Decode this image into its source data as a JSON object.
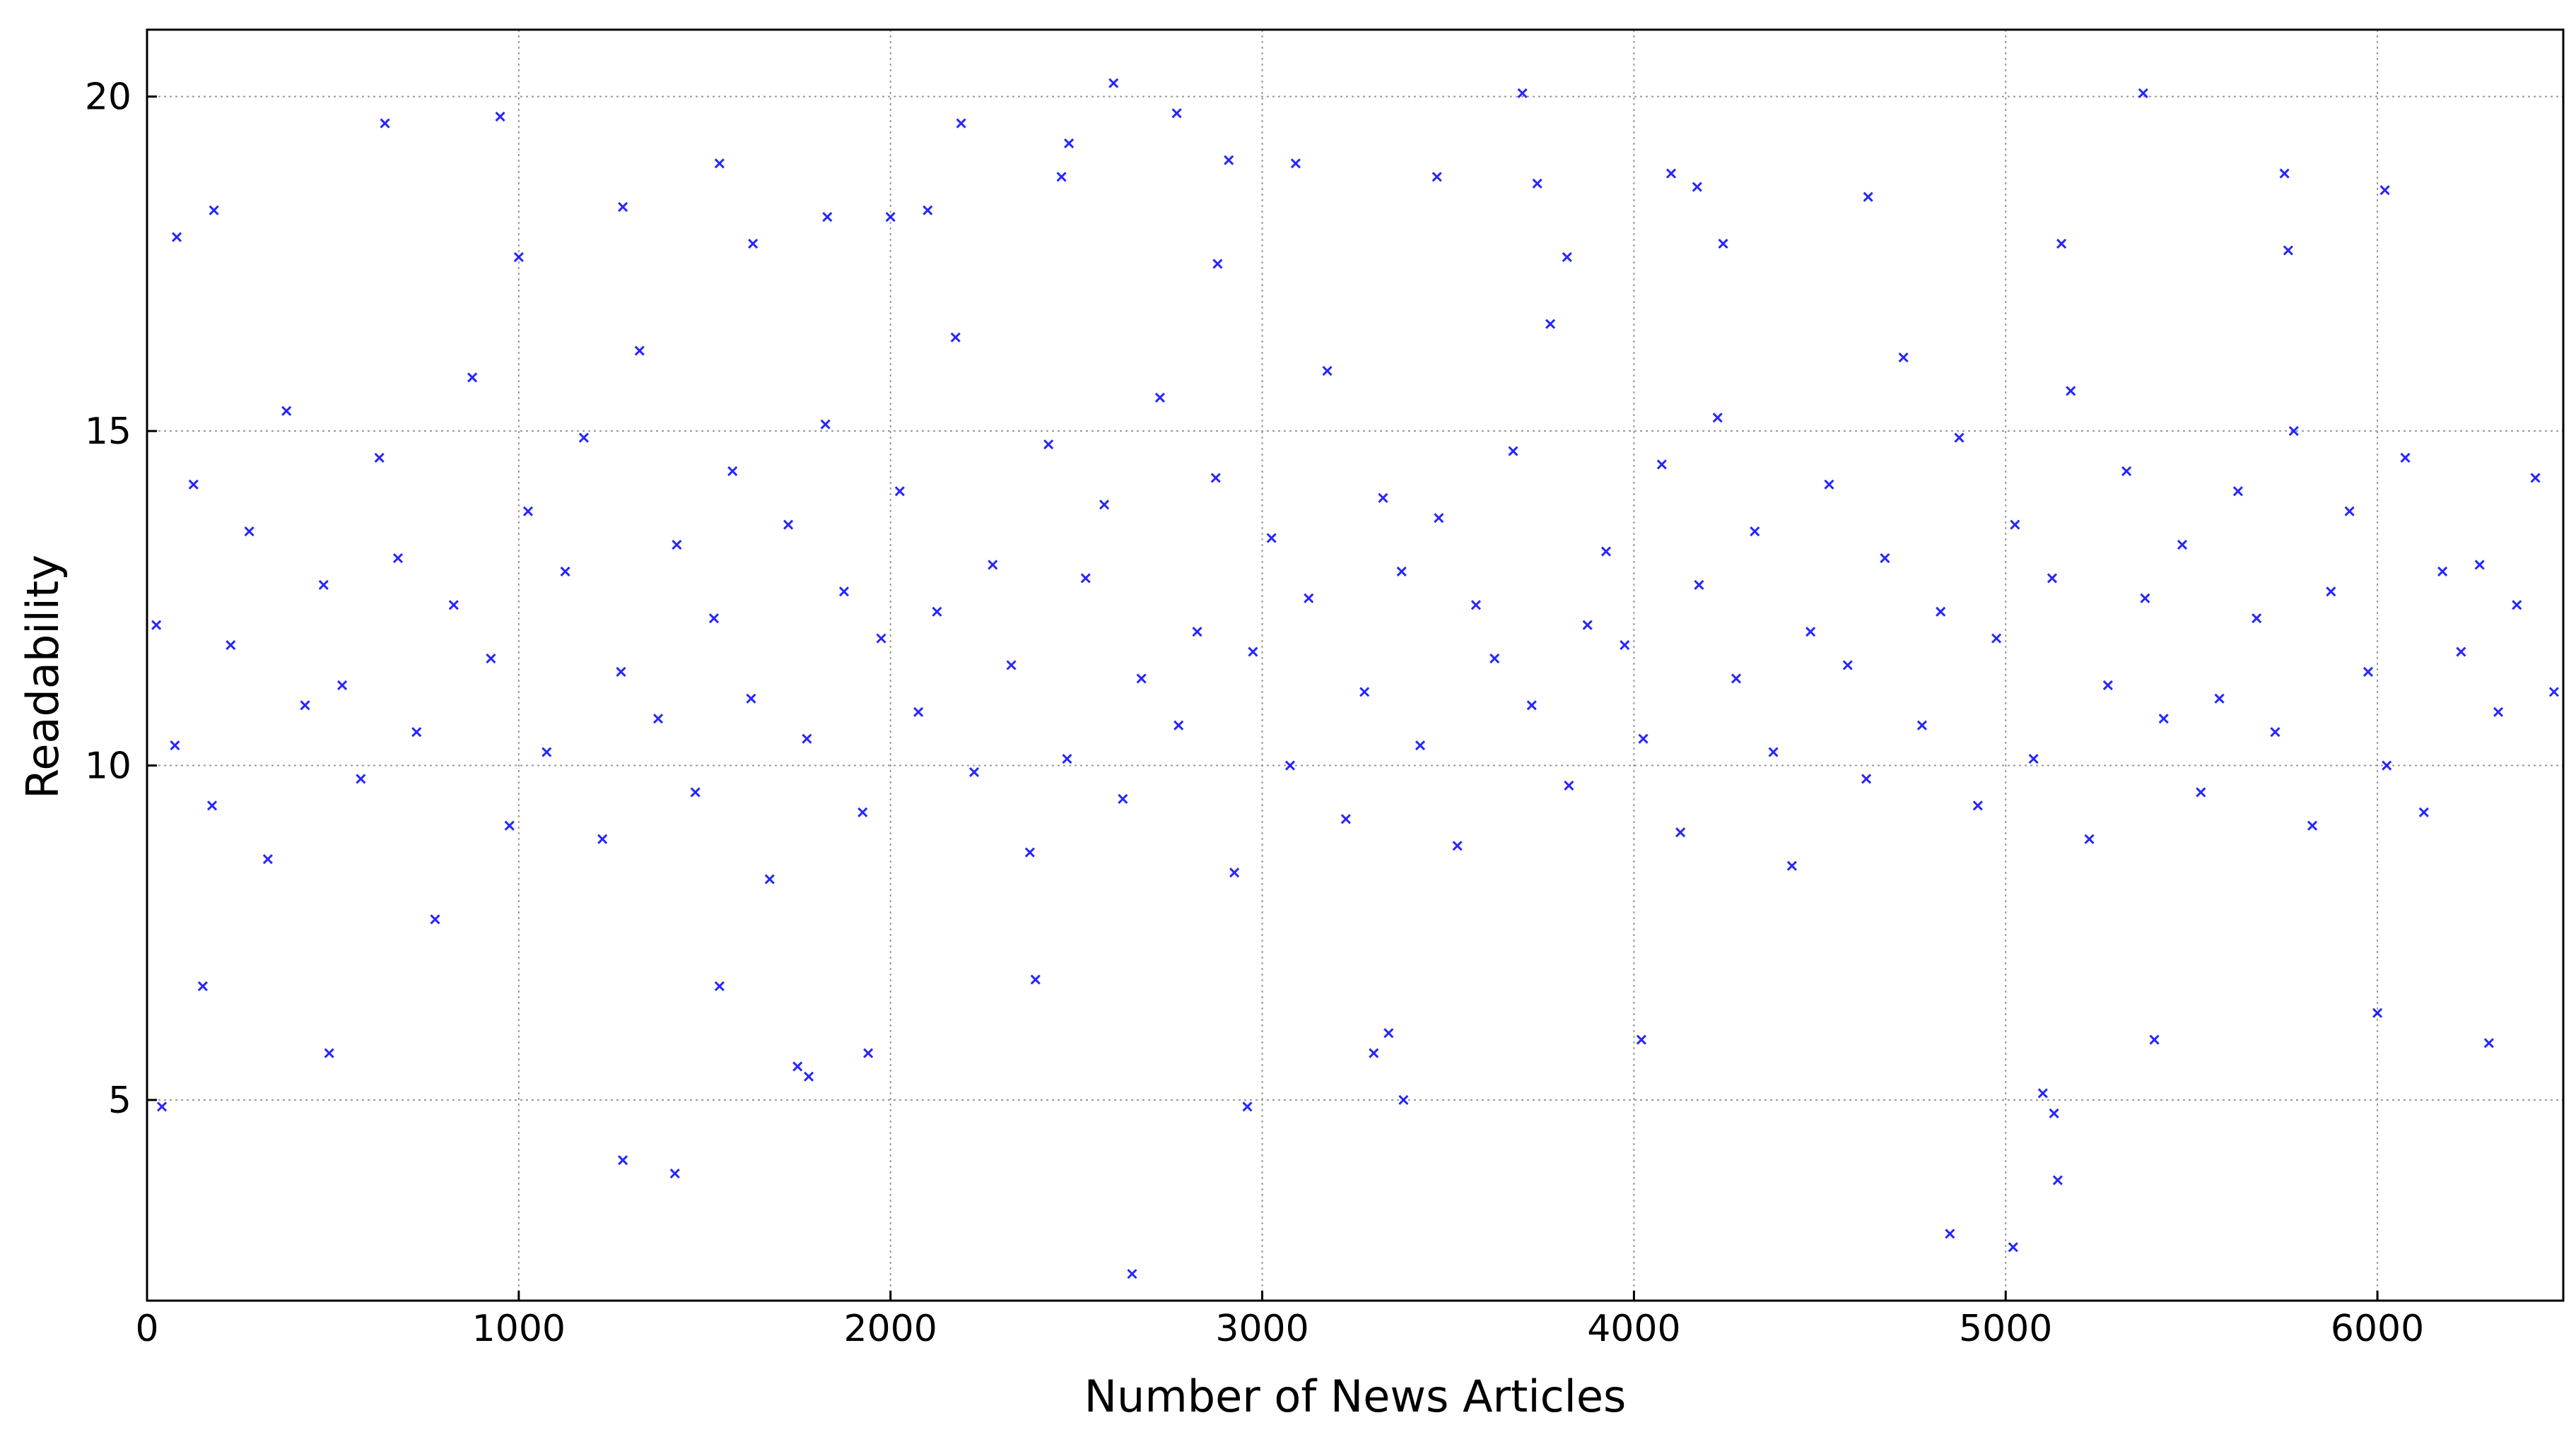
{
  "chart_data": {
    "type": "scatter",
    "x_label": "Number of News Articles",
    "y_label": "Readability",
    "color": "#0000ff",
    "marker": "x",
    "grid": true,
    "xlim": [
      0,
      6500
    ],
    "ylim": [
      2,
      21
    ],
    "xticks": [
      0,
      1000,
      2000,
      3000,
      4000,
      5000,
      6000
    ],
    "yticks": [
      5,
      10,
      15,
      20
    ],
    "x": [
      25,
      75,
      125,
      175,
      225,
      275,
      325,
      375,
      425,
      475,
      525,
      575,
      625,
      675,
      725,
      775,
      825,
      875,
      925,
      975,
      1025,
      1075,
      1125,
      1175,
      1225,
      1275,
      1325,
      1375,
      1425,
      1475,
      1525,
      1575,
      1625,
      1675,
      1725,
      1775,
      1825,
      1875,
      1925,
      1975,
      2025,
      2075,
      2125,
      2175,
      2225,
      2275,
      2325,
      2375,
      2425,
      2475,
      2525,
      2575,
      2625,
      2675,
      2725,
      2775,
      2825,
      2875,
      2925,
      2975,
      3025,
      3075,
      3125,
      3175,
      3225,
      3275,
      3325,
      3375,
      3425,
      3475,
      3525,
      3575,
      3625,
      3675,
      3725,
      3775,
      3825,
      3875,
      3925,
      3975,
      4025,
      4075,
      4125,
      4175,
      4225,
      4275,
      4325,
      4375,
      4425,
      4475,
      4525,
      4575,
      4625,
      4675,
      4725,
      4775,
      4825,
      4875,
      4925,
      4975,
      5025,
      5075,
      5125,
      5175,
      5225,
      5275,
      5325,
      5375,
      5425,
      5475,
      5525,
      5575,
      5625,
      5675,
      5725,
      5775,
      5825,
      5875,
      5925,
      5975,
      6025,
      6075,
      6125,
      6175,
      6225,
      6275,
      6325,
      6375,
      6425,
      6475,
      40,
      490,
      1280,
      1420,
      1750,
      1780,
      1940,
      2650,
      2960,
      3300,
      3340,
      3380,
      4020,
      4850,
      5020,
      5100,
      5130,
      5140,
      5400,
      6300,
      6000,
      150,
      1540,
      2390,
      3700,
      2600,
      5370,
      950,
      640,
      2190,
      2770,
      2480,
      2460,
      2910,
      3090,
      1540,
      3470,
      4100,
      4170,
      5750,
      6020,
      1280,
      180,
      80,
      1000,
      3740,
      4630,
      2000,
      2100,
      1830,
      5150,
      5760,
      4240,
      1630,
      2880,
      3820
    ],
    "values": [
      12.1,
      10.3,
      14.2,
      9.4,
      11.8,
      13.5,
      8.6,
      15.3,
      10.9,
      12.7,
      11.2,
      9.8,
      14.6,
      13.1,
      10.5,
      7.7,
      12.4,
      15.8,
      11.6,
      9.1,
      13.8,
      10.2,
      12.9,
      14.9,
      8.9,
      11.4,
      16.2,
      10.7,
      13.3,
      9.6,
      12.2,
      14.4,
      11.0,
      8.3,
      13.6,
      10.4,
      15.1,
      12.6,
      9.3,
      11.9,
      14.1,
      10.8,
      12.3,
      16.4,
      9.9,
      13.0,
      11.5,
      8.7,
      14.8,
      10.1,
      12.8,
      13.9,
      9.5,
      11.3,
      15.5,
      10.6,
      12.0,
      14.3,
      8.4,
      11.7,
      13.4,
      10.0,
      12.5,
      15.9,
      9.2,
      11.1,
      14.0,
      12.9,
      10.3,
      13.7,
      8.8,
      12.4,
      11.6,
      14.7,
      10.9,
      16.6,
      9.7,
      12.1,
      13.2,
      11.8,
      10.4,
      14.5,
      9.0,
      12.7,
      15.2,
      11.3,
      13.5,
      10.2,
      8.5,
      12.0,
      14.2,
      11.5,
      9.8,
      13.1,
      16.1,
      10.6,
      12.3,
      14.9,
      9.4,
      11.9,
      13.6,
      10.1,
      12.8,
      15.6,
      8.9,
      11.2,
      14.4,
      12.5,
      10.7,
      13.3,
      9.6,
      11.0,
      14.1,
      12.2,
      10.5,
      15.0,
      9.1,
      12.6,
      13.8,
      11.4,
      10.0,
      14.6,
      9.3,
      12.9,
      11.7,
      13.0,
      10.8,
      12.4,
      14.3,
      11.1,
      4.9,
      5.7,
      4.1,
      3.9,
      5.5,
      5.35,
      5.7,
      2.4,
      4.9,
      5.7,
      6.0,
      5.0,
      5.9,
      3.0,
      2.8,
      5.1,
      4.8,
      3.8,
      5.9,
      5.85,
      6.3,
      6.7,
      6.7,
      6.8,
      20.05,
      20.2,
      20.05,
      19.7,
      19.6,
      19.6,
      19.75,
      19.3,
      18.8,
      19.05,
      19.0,
      19.0,
      18.8,
      18.85,
      18.65,
      18.85,
      18.6,
      18.35,
      18.3,
      17.9,
      17.6,
      18.7,
      18.5,
      18.2,
      18.3,
      18.2,
      17.8,
      17.7,
      17.8,
      17.8,
      17.5,
      17.6
    ]
  }
}
